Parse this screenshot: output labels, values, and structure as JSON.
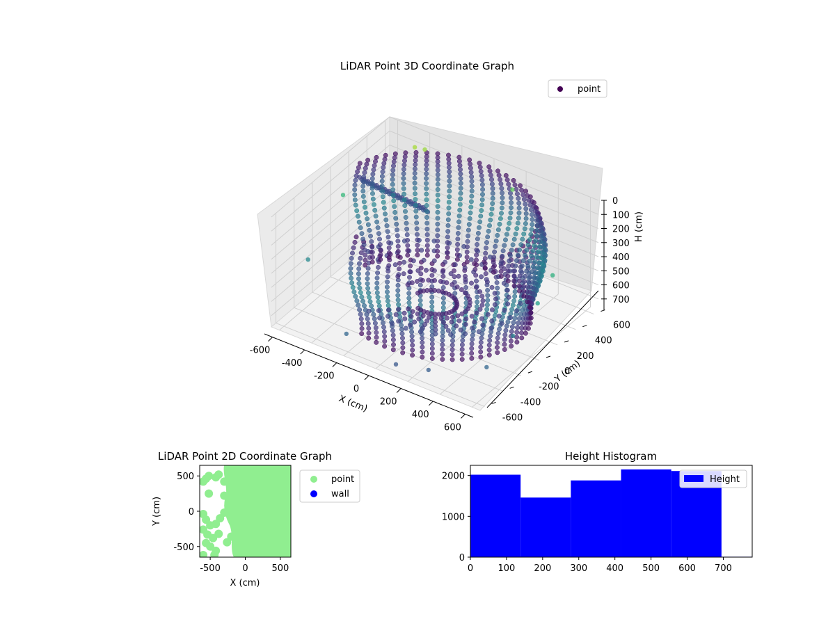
{
  "chart_data": [
    {
      "type": "scatter",
      "dimension": "3d",
      "title": "LiDAR Point 3D Coordinate Graph",
      "xlabel": "X (cm)",
      "ylabel": "Y (cm)",
      "zlabel": "H (cm)",
      "x_ticks": [
        -600,
        -400,
        -200,
        0,
        200,
        400,
        600
      ],
      "y_ticks": [
        -600,
        -400,
        -200,
        0,
        200,
        400,
        600
      ],
      "z_ticks": [
        0,
        100,
        200,
        300,
        400,
        500,
        600,
        700
      ],
      "xlim": [
        -650,
        650
      ],
      "ylim": [
        -650,
        650
      ],
      "zlim": [
        780,
        0
      ],
      "z_inverted": true,
      "colormap": "viridis",
      "legend": {
        "placement": "upper-right",
        "entries": [
          {
            "label": "point",
            "color": "#440154"
          }
        ]
      },
      "grid": true,
      "series": [
        {
          "name": "point",
          "description_points": "dense ring of points at radius ~600 cm, heights 0-700 cm, plus scattered outliers",
          "outliers": [
            {
              "x": -420,
              "y": 520,
              "h": 40
            },
            {
              "x": -380,
              "y": 560,
              "h": 60
            },
            {
              "x": 120,
              "y": 640,
              "h": 160
            },
            {
              "x": -640,
              "y": 120,
              "h": 260
            },
            {
              "x": 620,
              "y": 200,
              "h": 300
            },
            {
              "x": 640,
              "y": 0,
              "h": 380
            },
            {
              "x": 600,
              "y": -200,
              "h": 520
            },
            {
              "x": 560,
              "y": -420,
              "h": 640
            },
            {
              "x": 300,
              "y": -600,
              "h": 680
            },
            {
              "x": 120,
              "y": -640,
              "h": 700
            },
            {
              "x": -200,
              "y": -620,
              "h": 640
            },
            {
              "x": -620,
              "y": -300,
              "h": 480
            }
          ]
        }
      ]
    },
    {
      "type": "scatter",
      "title": "LiDAR Point 2D Coordinate Graph",
      "xlabel": "X (cm)",
      "ylabel": "Y (cm)",
      "x_ticks": [
        -500,
        0,
        500
      ],
      "y_ticks": [
        -500,
        0,
        500
      ],
      "xlim": [
        -650,
        650
      ],
      "ylim": [
        -650,
        650
      ],
      "legend": {
        "placement": "outside-right",
        "entries": [
          {
            "label": "point",
            "color": "#90ee90"
          },
          {
            "label": "wall",
            "color": "#0000ff"
          }
        ]
      },
      "series": [
        {
          "name": "point",
          "color": "#90ee90",
          "blobs": [
            {
              "x": -600,
              "y": 420
            },
            {
              "x": -560,
              "y": 460
            },
            {
              "x": -520,
              "y": 500
            },
            {
              "x": -420,
              "y": 480
            },
            {
              "x": -380,
              "y": 520
            },
            {
              "x": -300,
              "y": 420
            },
            {
              "x": -520,
              "y": 250
            },
            {
              "x": -300,
              "y": 220
            },
            {
              "x": -600,
              "y": -40
            },
            {
              "x": -560,
              "y": -120
            },
            {
              "x": -500,
              "y": -200
            },
            {
              "x": -420,
              "y": -180
            },
            {
              "x": -360,
              "y": -100
            },
            {
              "x": -600,
              "y": -260
            },
            {
              "x": -540,
              "y": -330
            },
            {
              "x": -460,
              "y": -380
            },
            {
              "x": -380,
              "y": -320
            },
            {
              "x": -560,
              "y": -450
            },
            {
              "x": -500,
              "y": -500
            },
            {
              "x": -420,
              "y": -560
            },
            {
              "x": -260,
              "y": -440
            },
            {
              "x": -200,
              "y": -360
            },
            {
              "x": -600,
              "y": -620
            },
            {
              "x": -440,
              "y": -620
            },
            {
              "x": -300,
              "y": -20
            },
            {
              "x": -240,
              "y": 80
            }
          ]
        },
        {
          "name": "wall",
          "color": "#0000ff",
          "points": []
        }
      ]
    },
    {
      "type": "bar",
      "histogram": true,
      "title": "Height Histogram",
      "xlabel": "",
      "ylabel": "",
      "x_ticks": [
        0,
        100,
        200,
        300,
        400,
        500,
        600,
        700
      ],
      "y_ticks": [
        0,
        1000,
        2000
      ],
      "xlim": [
        0,
        780
      ],
      "ylim": [
        0,
        2250
      ],
      "legend": {
        "placement": "upper-right",
        "entries": [
          {
            "label": "Height",
            "color": "#0000ff"
          }
        ]
      },
      "bins": [
        {
          "start": 0,
          "end": 139,
          "count": 2020
        },
        {
          "start": 139,
          "end": 278,
          "count": 1460
        },
        {
          "start": 278,
          "end": 417,
          "count": 1880
        },
        {
          "start": 417,
          "end": 556,
          "count": 2150
        },
        {
          "start": 556,
          "end": 695,
          "count": 2110
        },
        {
          "start": 695,
          "end": 834,
          "count": 10
        }
      ],
      "color": "#0000ff"
    }
  ]
}
